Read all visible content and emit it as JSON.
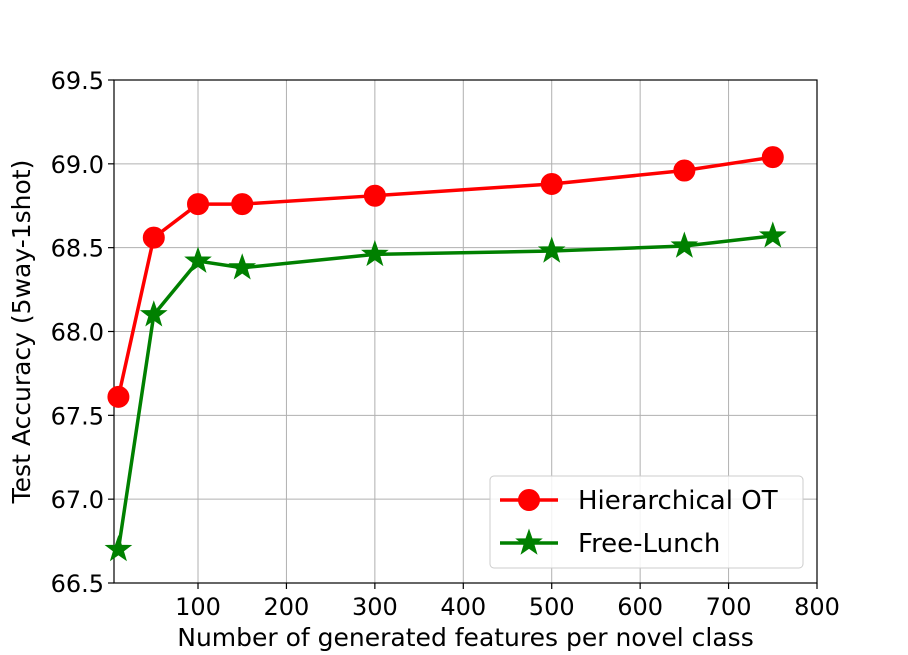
{
  "chart_data": {
    "type": "line",
    "title": "",
    "xlabel": "Number of generated features per novel class",
    "ylabel": "Test Accuracy (5way-1shot)",
    "xlim": [
      5,
      800
    ],
    "ylim": [
      66.5,
      69.5
    ],
    "xticks": [
      100,
      200,
      300,
      400,
      500,
      600,
      700,
      800
    ],
    "xtick_labels": [
      "100",
      "200",
      "300",
      "400",
      "500",
      "600",
      "700",
      "800"
    ],
    "yticks": [
      66.5,
      67.0,
      67.5,
      68.0,
      68.5,
      69.0,
      69.5
    ],
    "ytick_labels": [
      "66.5",
      "67.0",
      "67.5",
      "68.0",
      "68.5",
      "69.0",
      "69.5"
    ],
    "grid": true,
    "legend_position": "bottom-right",
    "x": [
      10,
      50,
      100,
      150,
      300,
      500,
      650,
      750
    ],
    "series": [
      {
        "name": "Hierarchical OT",
        "color": "#ff0000",
        "marker": "circle",
        "values": [
          67.61,
          68.56,
          68.76,
          68.76,
          68.81,
          68.88,
          68.96,
          69.04
        ]
      },
      {
        "name": "Free-Lunch",
        "color": "#008000",
        "marker": "star",
        "values": [
          66.7,
          68.1,
          68.42,
          68.38,
          68.46,
          68.48,
          68.51,
          68.57
        ]
      }
    ]
  }
}
